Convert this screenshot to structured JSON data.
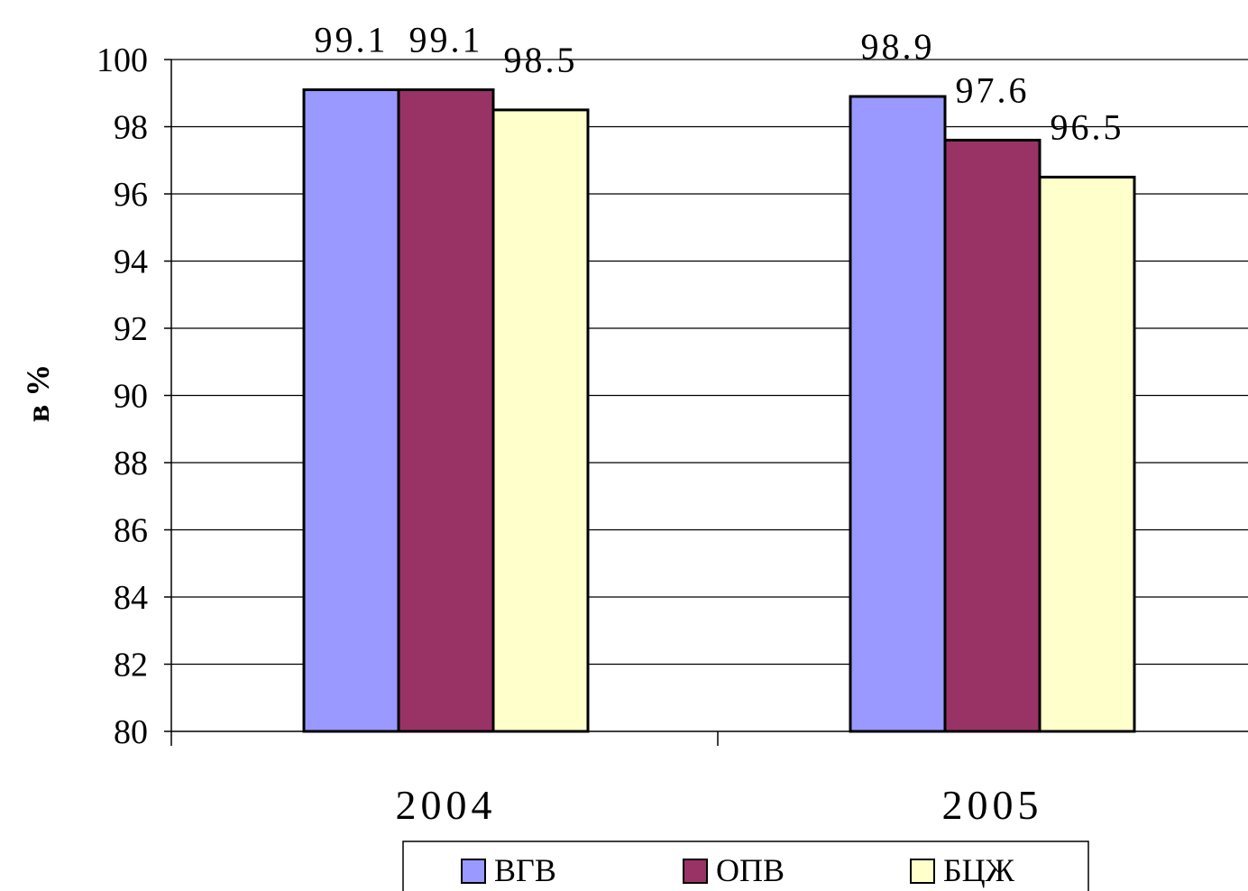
{
  "chart_data": {
    "type": "bar",
    "title": "",
    "xlabel": "",
    "ylabel": "в %",
    "ylim": [
      80,
      100
    ],
    "ytick_step": 2,
    "grid": true,
    "legend_position": "bottom",
    "categories": [
      "2004",
      "2005"
    ],
    "series": [
      {
        "name": "ВГВ",
        "values": [
          99.1,
          98.9
        ],
        "color": "#9999ff"
      },
      {
        "name": "ОПВ",
        "values": [
          99.1,
          97.6
        ],
        "color": "#993366"
      },
      {
        "name": "БЦЖ",
        "values": [
          98.5,
          96.5
        ],
        "color": "#ffffcc"
      }
    ]
  }
}
